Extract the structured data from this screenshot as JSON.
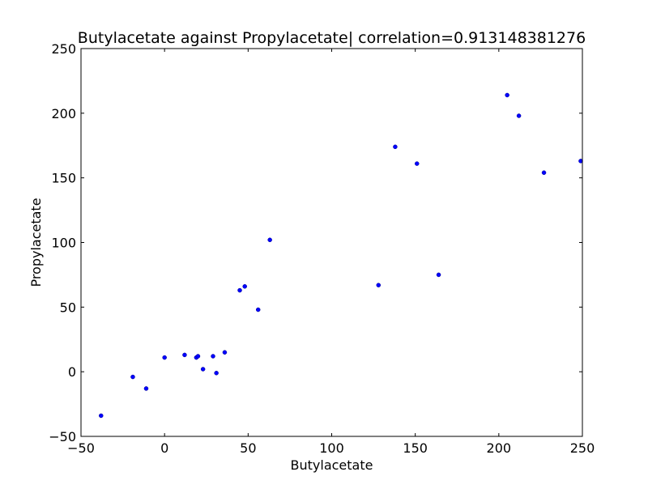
{
  "chart_data": {
    "type": "scatter",
    "title": "Butylacetate against Propylacetate| correlation=0.913148381276",
    "xlabel": "Butylacetate",
    "ylabel": "Propylacetate",
    "xlim": [
      -50,
      250
    ],
    "ylim": [
      -50,
      250
    ],
    "xticks": [
      -50,
      0,
      50,
      100,
      150,
      200,
      250
    ],
    "yticks": [
      -50,
      0,
      50,
      100,
      150,
      200,
      250
    ],
    "xtick_labels": [
      "−50",
      "0",
      "50",
      "100",
      "150",
      "200",
      "250"
    ],
    "ytick_labels": [
      "−50",
      "0",
      "50",
      "100",
      "150",
      "200",
      "250"
    ],
    "grid": false,
    "series": [
      {
        "color": "#0000ff",
        "points": [
          [
            -38,
            -34
          ],
          [
            -19,
            -4
          ],
          [
            -11,
            -13
          ],
          [
            0,
            11
          ],
          [
            12,
            13
          ],
          [
            19,
            11
          ],
          [
            20,
            12
          ],
          [
            23,
            2
          ],
          [
            29,
            12
          ],
          [
            31,
            -1
          ],
          [
            36,
            15
          ],
          [
            45,
            63
          ],
          [
            48,
            66
          ],
          [
            56,
            48
          ],
          [
            63,
            102
          ],
          [
            128,
            67
          ],
          [
            138,
            174
          ],
          [
            151,
            161
          ],
          [
            164,
            75
          ],
          [
            205,
            214
          ],
          [
            212,
            198
          ],
          [
            227,
            154
          ],
          [
            249,
            163
          ]
        ]
      }
    ]
  }
}
